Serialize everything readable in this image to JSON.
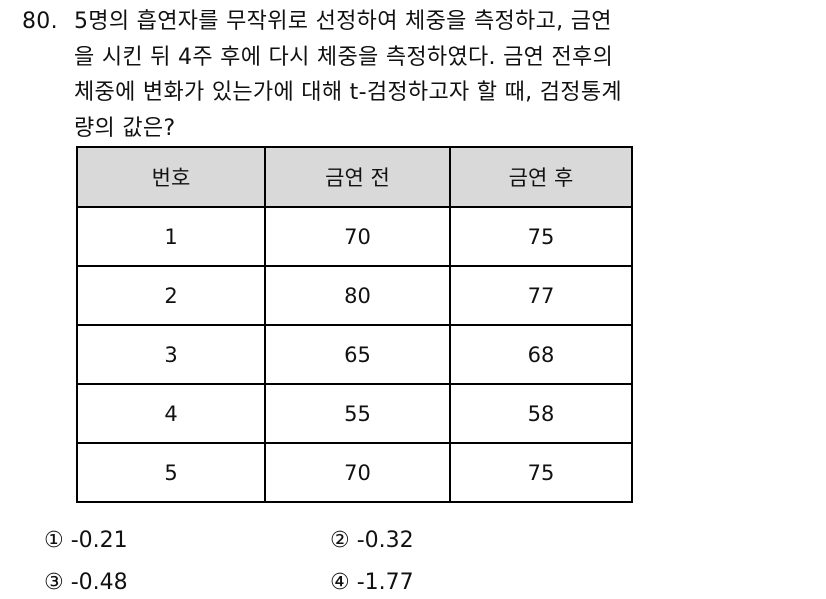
{
  "question": {
    "number": "80.",
    "lines": [
      "5명의 흡연자를 무작위로 선정하여 체중을 측정하고, 금연",
      "을 시킨 뒤 4주 후에 다시 체중을 측정하였다. 금연 전후의",
      "체중에 변화가 있는가에 대해 t-검정하고자 할 때, 검정통계",
      "량의 값은?"
    ]
  },
  "table": {
    "headers": [
      "번호",
      "금연 전",
      "금연 후"
    ],
    "rows": [
      [
        "1",
        "70",
        "75"
      ],
      [
        "2",
        "80",
        "77"
      ],
      [
        "3",
        "65",
        "68"
      ],
      [
        "4",
        "55",
        "58"
      ],
      [
        "5",
        "70",
        "75"
      ]
    ],
    "header_bg": "#d9d9d9"
  },
  "options": [
    {
      "mark": "①",
      "text": "-0.21"
    },
    {
      "mark": "②",
      "text": "-0.32"
    },
    {
      "mark": "③",
      "text": "-0.48"
    },
    {
      "mark": "④",
      "text": "-1.77"
    }
  ]
}
